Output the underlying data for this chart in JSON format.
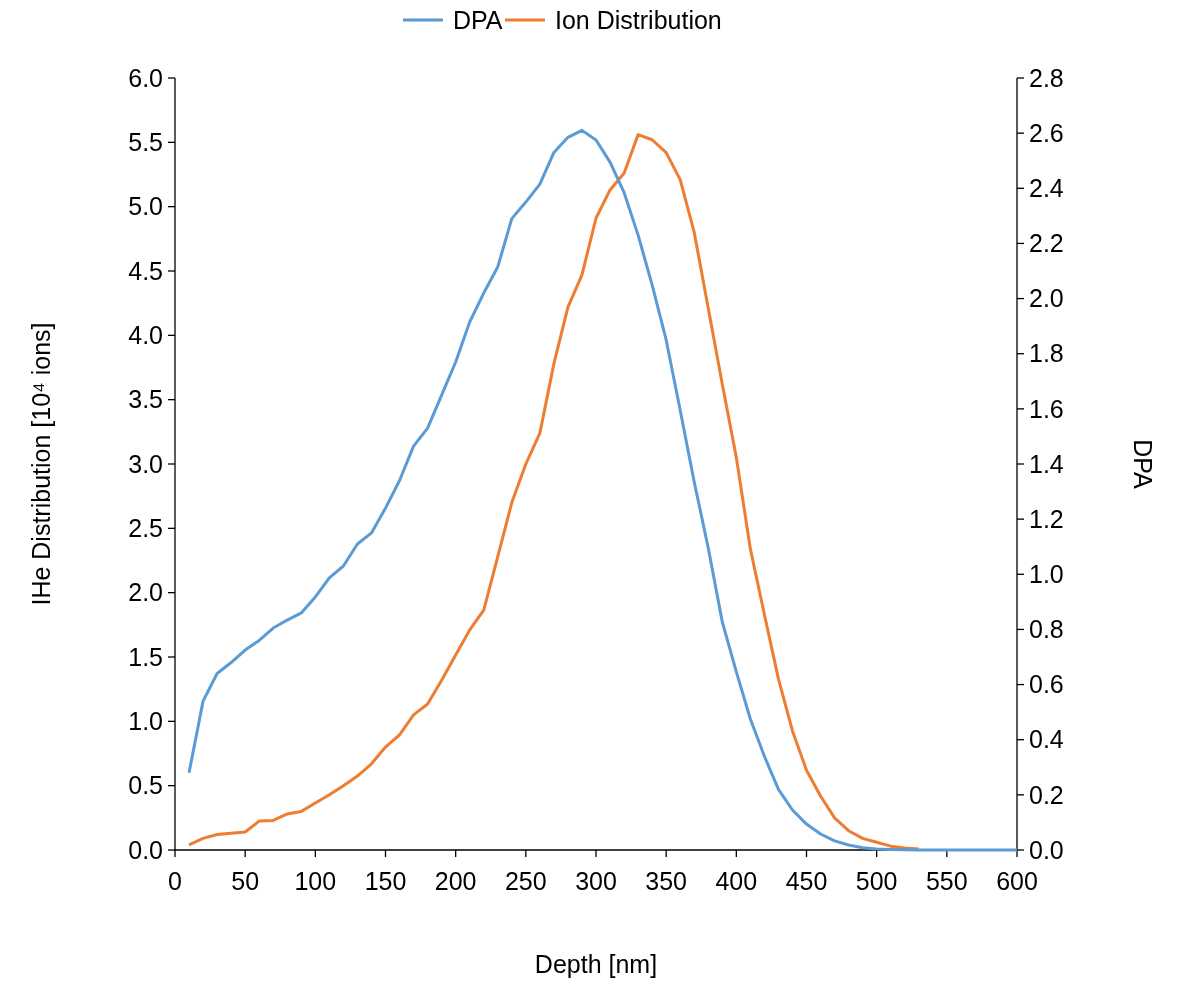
{
  "chart_data": {
    "type": "line",
    "xlabel": "Depth [nm]",
    "ylabel": "IHe Distribution [10⁴ ions]",
    "y2label": "DPA",
    "legend": "top",
    "grid": false,
    "marker": "none",
    "line_style": "solid",
    "x": [
      10,
      20,
      30,
      40,
      50,
      60,
      70,
      80,
      90,
      100,
      110,
      120,
      130,
      140,
      150,
      160,
      170,
      180,
      190,
      200,
      210,
      220,
      230,
      240,
      250,
      260,
      270,
      280,
      290,
      300,
      310,
      320,
      330,
      340,
      350,
      360,
      370,
      380,
      390,
      400,
      410,
      420,
      430,
      440,
      450,
      460,
      470,
      480,
      490,
      500,
      510,
      520,
      530,
      540,
      550,
      560,
      570,
      580,
      590,
      600
    ],
    "xlim": [
      0,
      600
    ],
    "xticks": [
      0,
      50,
      100,
      150,
      200,
      250,
      300,
      350,
      400,
      450,
      500,
      550,
      600
    ],
    "ylim": [
      0,
      6
    ],
    "yticks": [
      {
        "value": 0,
        "label": "0.0"
      },
      {
        "value": 0.5,
        "label": "0.5"
      },
      {
        "value": 1,
        "label": "1.0"
      },
      {
        "value": 1.5,
        "label": "1.5"
      },
      {
        "value": 2,
        "label": "2.0"
      },
      {
        "value": 2.5,
        "label": "2.5"
      },
      {
        "value": 3,
        "label": "3.0"
      },
      {
        "value": 3.5,
        "label": "3.5"
      },
      {
        "value": 4,
        "label": "4.0"
      },
      {
        "value": 4.5,
        "label": "4.5"
      },
      {
        "value": 5,
        "label": "5.0"
      },
      {
        "value": 5.5,
        "label": "5.5"
      },
      {
        "value": 6,
        "label": "6.0"
      }
    ],
    "y2lim": [
      0,
      2.8
    ],
    "y2ticks": [
      {
        "value": 0,
        "label": "0.0"
      },
      {
        "value": 0.2,
        "label": "0.2"
      },
      {
        "value": 0.4,
        "label": "0.4"
      },
      {
        "value": 0.6,
        "label": "0.6"
      },
      {
        "value": 0.8,
        "label": "0.8"
      },
      {
        "value": 1,
        "label": "1.0"
      },
      {
        "value": 1.2,
        "label": "1.2"
      },
      {
        "value": 1.4,
        "label": "1.4"
      },
      {
        "value": 1.6,
        "label": "1.6"
      },
      {
        "value": 1.8,
        "label": "1.8"
      },
      {
        "value": 2,
        "label": "2.0"
      },
      {
        "value": 2.2,
        "label": "2.2"
      },
      {
        "value": 2.4,
        "label": "2.4"
      },
      {
        "value": 2.6,
        "label": "2.6"
      },
      {
        "value": 2.8,
        "label": "2.8"
      }
    ],
    "series": [
      {
        "name": "DPA",
        "color": "#5b9bd5",
        "axis": "y2",
        "values": [
          0.28,
          0.54,
          0.64,
          0.68,
          0.725,
          0.76,
          0.805,
          0.834,
          0.86,
          0.918,
          0.987,
          1.03,
          1.11,
          1.15,
          1.24,
          1.34,
          1.465,
          1.53,
          1.65,
          1.77,
          1.915,
          2.02,
          2.115,
          2.29,
          2.35,
          2.415,
          2.53,
          2.585,
          2.61,
          2.575,
          2.495,
          2.385,
          2.23,
          2.05,
          1.85,
          1.595,
          1.335,
          1.095,
          0.827,
          0.646,
          0.475,
          0.34,
          0.22,
          0.145,
          0.094,
          0.058,
          0.033,
          0.018,
          0.008,
          0.004,
          0.002,
          0.001,
          0,
          0,
          0,
          0,
          0,
          0,
          0,
          0
        ]
      },
      {
        "name": "Ion Distribution",
        "color": "#ed7d31",
        "values": [
          0.04,
          0.09,
          0.12,
          0.13,
          0.14,
          0.225,
          0.23,
          0.28,
          0.3,
          0.365,
          0.43,
          0.5,
          0.575,
          0.67,
          0.8,
          0.895,
          1.05,
          1.135,
          1.32,
          1.515,
          1.71,
          1.865,
          2.28,
          2.7,
          3.0,
          3.24,
          3.78,
          4.22,
          4.47,
          4.91,
          5.13,
          5.26,
          5.56,
          5.52,
          5.42,
          5.21,
          4.8,
          4.21,
          3.62,
          3.05,
          2.34,
          1.83,
          1.33,
          0.925,
          0.62,
          0.42,
          0.25,
          0.15,
          0.09,
          0.06,
          0.03,
          0.015,
          0.008,
          null,
          null,
          null,
          null,
          null,
          null,
          null
        ]
      }
    ]
  }
}
